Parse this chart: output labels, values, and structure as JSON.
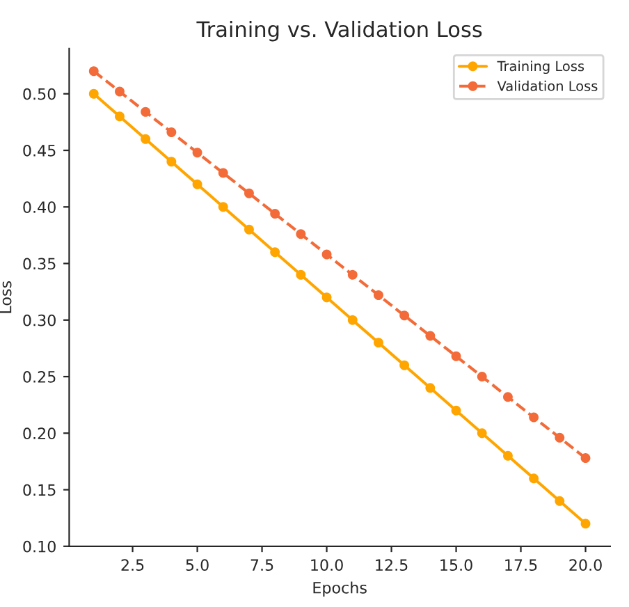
{
  "chart_data": {
    "type": "line",
    "title": "Training vs. Validation Loss",
    "xlabel": "Epochs",
    "ylabel": "Loss",
    "x": [
      1,
      2,
      3,
      4,
      5,
      6,
      7,
      8,
      9,
      10,
      11,
      12,
      13,
      14,
      15,
      16,
      17,
      18,
      19,
      20
    ],
    "series": [
      {
        "name": "Training Loss",
        "color": "#ffa500",
        "line_style": "solid",
        "values": [
          0.5,
          0.48,
          0.46,
          0.44,
          0.42,
          0.4,
          0.38,
          0.36,
          0.34,
          0.32,
          0.3,
          0.28,
          0.26,
          0.24,
          0.22,
          0.2,
          0.18,
          0.16,
          0.14,
          0.12
        ]
      },
      {
        "name": "Validation Loss",
        "color": "#f26b38",
        "line_style": "dashed",
        "values": [
          0.52,
          0.502,
          0.484,
          0.466,
          0.448,
          0.43,
          0.412,
          0.394,
          0.376,
          0.358,
          0.34,
          0.322,
          0.304,
          0.286,
          0.268,
          0.25,
          0.232,
          0.214,
          0.196,
          0.178
        ]
      }
    ],
    "xlim": [
      0.05,
      20.95
    ],
    "xticks": [
      {
        "value": 2.5,
        "label": "2.5"
      },
      {
        "value": 5.0,
        "label": "5.0"
      },
      {
        "value": 7.5,
        "label": "7.5"
      },
      {
        "value": 10.0,
        "label": "10.0"
      },
      {
        "value": 12.5,
        "label": "12.5"
      },
      {
        "value": 15.0,
        "label": "15.0"
      },
      {
        "value": 17.5,
        "label": "17.5"
      },
      {
        "value": 20.0,
        "label": "20.0"
      }
    ],
    "ylim": [
      0.1,
      0.54
    ],
    "yticks": [
      {
        "value": 0.1,
        "label": "0.10"
      },
      {
        "value": 0.15,
        "label": "0.15"
      },
      {
        "value": 0.2,
        "label": "0.20"
      },
      {
        "value": 0.25,
        "label": "0.25"
      },
      {
        "value": 0.3,
        "label": "0.30"
      },
      {
        "value": 0.35,
        "label": "0.35"
      },
      {
        "value": 0.4,
        "label": "0.40"
      },
      {
        "value": 0.45,
        "label": "0.45"
      },
      {
        "value": 0.5,
        "label": "0.50"
      }
    ],
    "marker": "circle",
    "legend": "top right",
    "grid": false
  }
}
